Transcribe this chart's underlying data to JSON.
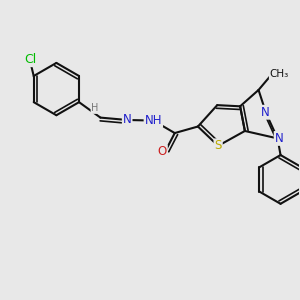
{
  "bg_color": "#e8e8e8",
  "bond_color": "#111111",
  "bond_lw": 1.5,
  "dbl_off": 0.11,
  "font_size": 8.5,
  "colors": {
    "Cl": "#00bb00",
    "N": "#2020cc",
    "O": "#cc2020",
    "S": "#bbaa00",
    "H": "#777777",
    "C": "#111111"
  }
}
